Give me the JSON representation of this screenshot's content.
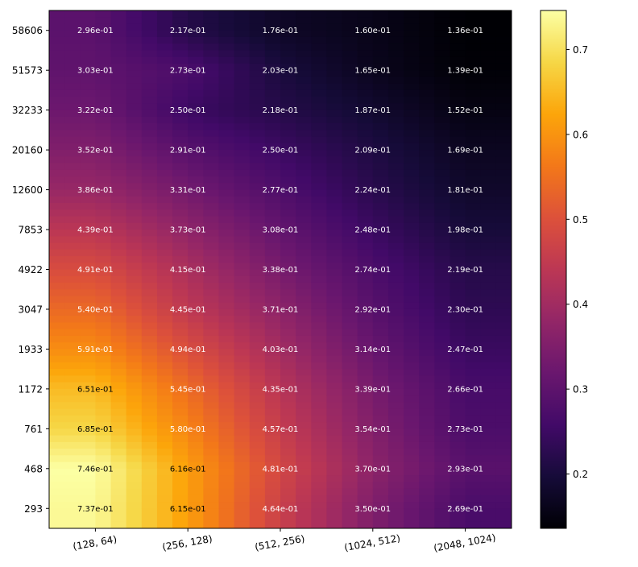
{
  "chart_data": {
    "type": "heatmap",
    "title": "",
    "xlabel": "",
    "ylabel": "",
    "x_categories": [
      "(128, 64)",
      "(256, 128)",
      "(512, 256)",
      "(1024, 512)",
      "(2048, 1024)"
    ],
    "y_categories": [
      "58606",
      "51573",
      "32233",
      "20160",
      "12600",
      "7853",
      "4922",
      "3047",
      "1933",
      "1172",
      "761",
      "468",
      "293"
    ],
    "values": [
      [
        0.296,
        0.217,
        0.176,
        0.16,
        0.136
      ],
      [
        0.303,
        0.273,
        0.203,
        0.165,
        0.139
      ],
      [
        0.322,
        0.25,
        0.218,
        0.187,
        0.152
      ],
      [
        0.352,
        0.291,
        0.25,
        0.209,
        0.169
      ],
      [
        0.386,
        0.331,
        0.277,
        0.224,
        0.181
      ],
      [
        0.439,
        0.373,
        0.308,
        0.248,
        0.198
      ],
      [
        0.491,
        0.415,
        0.338,
        0.274,
        0.219
      ],
      [
        0.54,
        0.445,
        0.371,
        0.292,
        0.23
      ],
      [
        0.591,
        0.494,
        0.403,
        0.314,
        0.247
      ],
      [
        0.651,
        0.545,
        0.435,
        0.339,
        0.266
      ],
      [
        0.685,
        0.58,
        0.457,
        0.354,
        0.273
      ],
      [
        0.746,
        0.616,
        0.481,
        0.37,
        0.293
      ],
      [
        0.737,
        0.615,
        0.464,
        0.35,
        0.269
      ]
    ],
    "labels": [
      [
        "2.96e-01",
        "2.17e-01",
        "1.76e-01",
        "1.60e-01",
        "1.36e-01"
      ],
      [
        "3.03e-01",
        "2.73e-01",
        "2.03e-01",
        "1.65e-01",
        "1.39e-01"
      ],
      [
        "3.22e-01",
        "2.50e-01",
        "2.18e-01",
        "1.87e-01",
        "1.52e-01"
      ],
      [
        "3.52e-01",
        "2.91e-01",
        "2.50e-01",
        "2.09e-01",
        "1.69e-01"
      ],
      [
        "3.86e-01",
        "3.31e-01",
        "2.77e-01",
        "2.24e-01",
        "1.81e-01"
      ],
      [
        "4.39e-01",
        "3.73e-01",
        "3.08e-01",
        "2.48e-01",
        "1.98e-01"
      ],
      [
        "4.91e-01",
        "4.15e-01",
        "3.38e-01",
        "2.74e-01",
        "2.19e-01"
      ],
      [
        "5.40e-01",
        "4.45e-01",
        "3.71e-01",
        "2.92e-01",
        "2.30e-01"
      ],
      [
        "5.91e-01",
        "4.94e-01",
        "4.03e-01",
        "3.14e-01",
        "2.47e-01"
      ],
      [
        "6.51e-01",
        "5.45e-01",
        "4.35e-01",
        "3.39e-01",
        "2.66e-01"
      ],
      [
        "6.85e-01",
        "5.80e-01",
        "4.57e-01",
        "3.54e-01",
        "2.73e-01"
      ],
      [
        "7.46e-01",
        "6.16e-01",
        "4.81e-01",
        "3.70e-01",
        "2.93e-01"
      ],
      [
        "7.37e-01",
        "6.15e-01",
        "4.64e-01",
        "3.50e-01",
        "2.69e-01"
      ]
    ],
    "colormap": "inferno",
    "colorbar": {
      "min": 0.136,
      "max": 0.746,
      "ticks": [
        0.2,
        0.3,
        0.4,
        0.5,
        0.6,
        0.7
      ],
      "tick_labels": [
        "0.2",
        "0.3",
        "0.4",
        "0.5",
        "0.6",
        "0.7"
      ]
    },
    "interpolation": "smooth",
    "grid": false,
    "dark_label_threshold": 0.6
  }
}
